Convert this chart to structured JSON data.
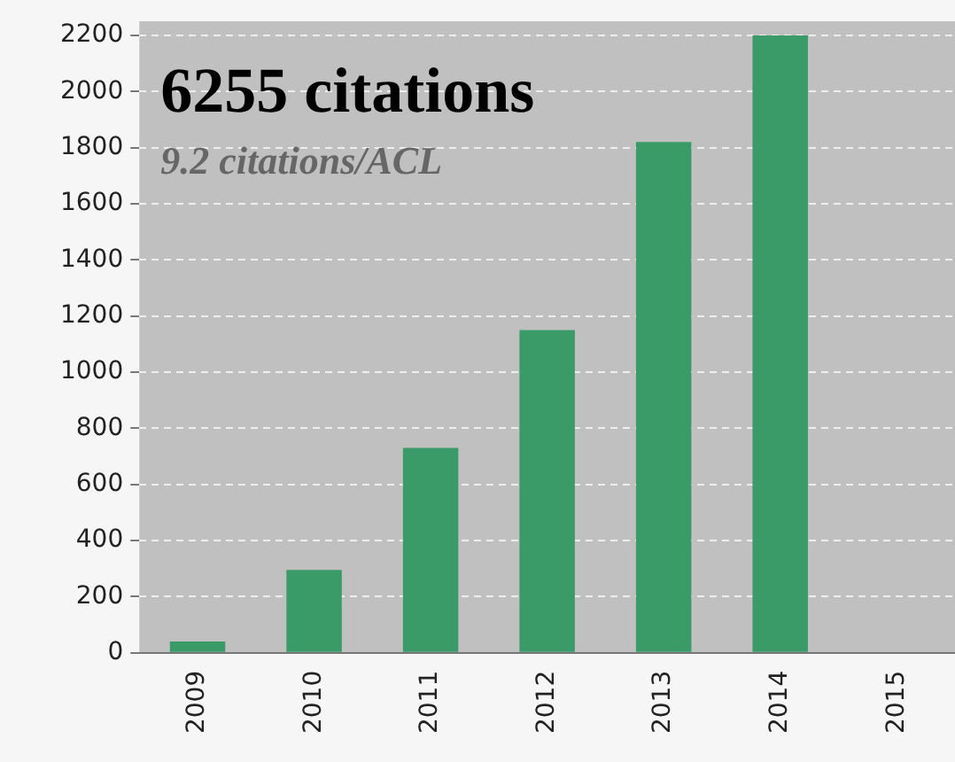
{
  "chart_data": {
    "type": "bar",
    "title": "6255 citations",
    "subtitle": "9.2 citations/ACL",
    "categories": [
      "2009",
      "2010",
      "2011",
      "2012",
      "2013",
      "2014",
      "2015"
    ],
    "values": [
      40,
      295,
      730,
      1150,
      1820,
      2200,
      null
    ],
    "color": "#3a9a68",
    "ylim": [
      0,
      2200
    ],
    "yticks": [
      0,
      200,
      400,
      600,
      800,
      1000,
      1200,
      1400,
      1600,
      1800,
      2000,
      2200
    ],
    "grid": "y",
    "legend": false
  }
}
